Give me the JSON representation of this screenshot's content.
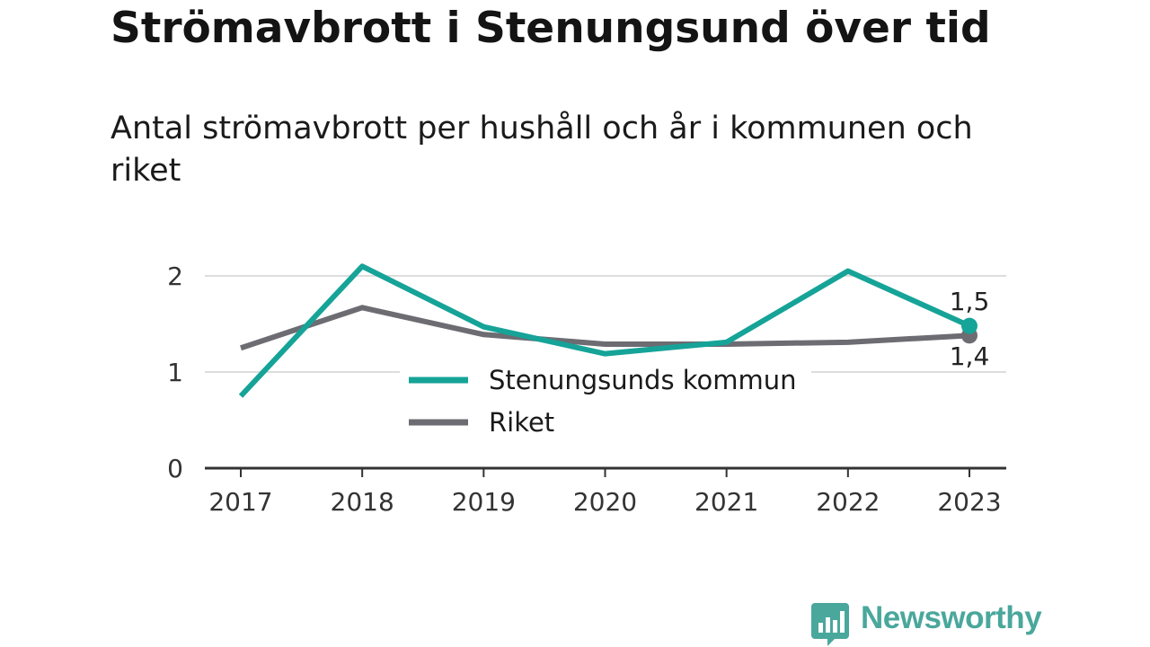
{
  "title": "Strömavbrott i Stenungsund över tid",
  "subtitle": "Antal strömavbrott per hushåll och år i kommunen och riket",
  "brand": "Newsworthy",
  "chart_data": {
    "type": "line",
    "x": [
      "2017",
      "2018",
      "2019",
      "2020",
      "2021",
      "2022",
      "2023"
    ],
    "ylim": [
      0,
      2.2
    ],
    "yticks": [
      0,
      1,
      2
    ],
    "grid": true,
    "legend_position": "center",
    "series": [
      {
        "name": "Stenungsunds kommun",
        "color": "#16a398",
        "values": [
          0.75,
          2.1,
          1.47,
          1.19,
          1.31,
          2.05,
          1.48
        ]
      },
      {
        "name": "Riket",
        "color": "#6d6c72",
        "values": [
          1.25,
          1.67,
          1.39,
          1.29,
          1.29,
          1.31,
          1.38
        ]
      }
    ],
    "end_labels": [
      "1,5",
      "1,4"
    ]
  }
}
